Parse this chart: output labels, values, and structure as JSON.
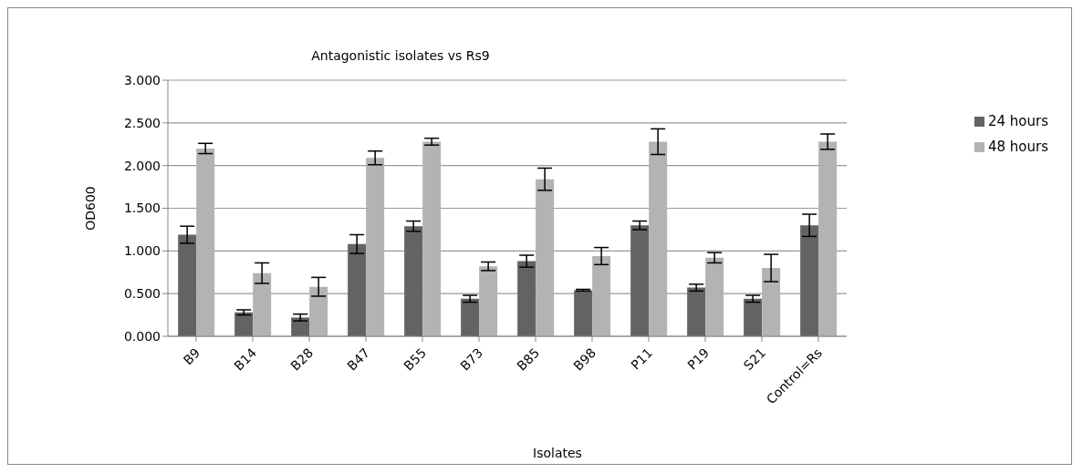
{
  "chart_data": {
    "type": "bar",
    "title": "Antagonistic isolates vs Rs9",
    "xlabel": "Isolates",
    "ylabel": "OD600",
    "categories": [
      "B9",
      "B14",
      "B28",
      "B47",
      "B55",
      "B73",
      "B85",
      "B98",
      "P11",
      "P19",
      "S21",
      "Control=Rs"
    ],
    "series": [
      {
        "name": "24 hours",
        "color": "#636363",
        "values": [
          1.19,
          0.28,
          0.22,
          1.08,
          1.29,
          0.44,
          0.88,
          0.54,
          1.3,
          0.57,
          0.44,
          1.3
        ],
        "errors": [
          0.1,
          0.03,
          0.04,
          0.11,
          0.06,
          0.04,
          0.07,
          0.01,
          0.05,
          0.04,
          0.04,
          0.13
        ]
      },
      {
        "name": "48 hours",
        "color": "#b3b3b3",
        "values": [
          2.2,
          0.74,
          0.58,
          2.09,
          2.28,
          0.82,
          1.84,
          0.94,
          2.28,
          0.92,
          0.8,
          2.28
        ],
        "errors": [
          0.06,
          0.12,
          0.11,
          0.08,
          0.04,
          0.05,
          0.13,
          0.1,
          0.15,
          0.06,
          0.16,
          0.09
        ]
      }
    ],
    "ylim": [
      0,
      3
    ],
    "yticks": [
      {
        "value": 0,
        "label": "0.000"
      },
      {
        "value": 0.5,
        "label": "0.500"
      },
      {
        "value": 1,
        "label": "1.000"
      },
      {
        "value": 1.5,
        "label": "1.500"
      },
      {
        "value": 2,
        "label": "2.000"
      },
      {
        "value": 2.5,
        "label": "2.500"
      },
      {
        "value": 3,
        "label": "3.000"
      }
    ],
    "grid": "y",
    "legend": "right"
  }
}
